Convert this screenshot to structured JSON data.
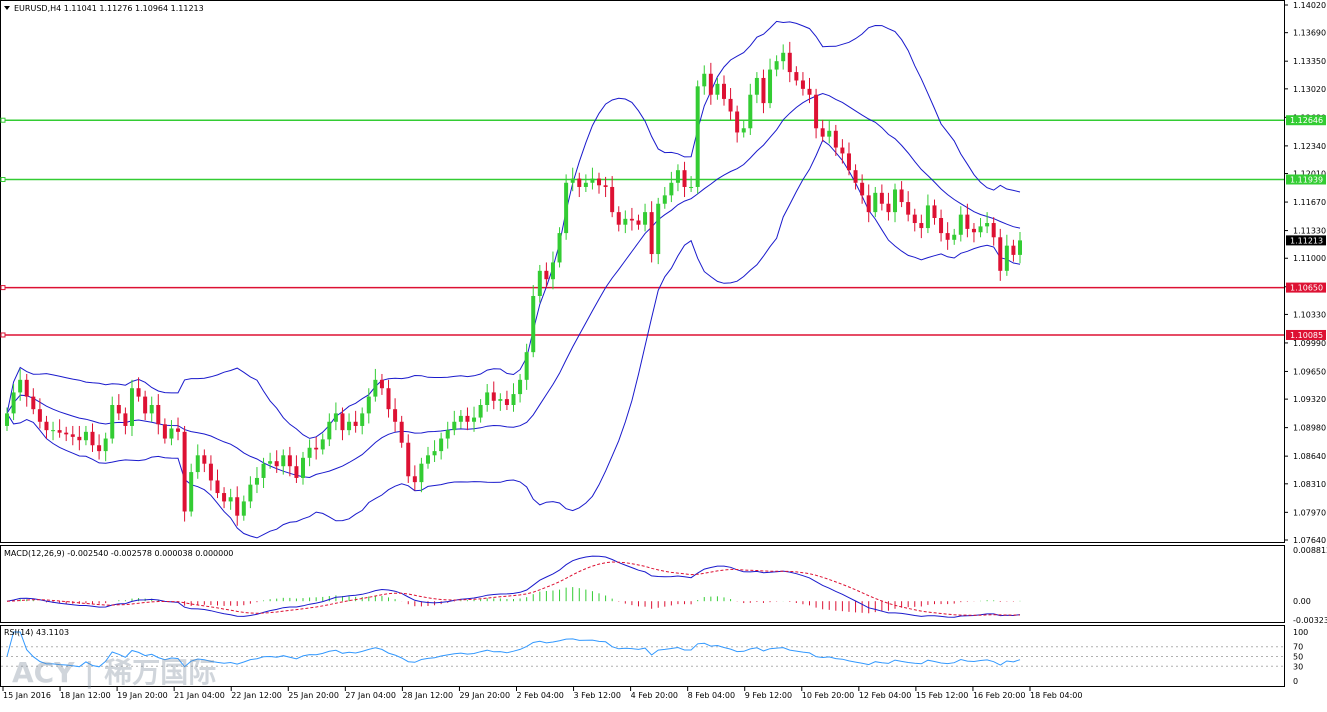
{
  "chart_data": {
    "type": "candlestick",
    "symbol_header": "EURUSD,H4  1.11041 1.11276 1.10964 1.11213",
    "current_price": "1.11213",
    "colors": {
      "bull": "#33cc33",
      "bear": "#dd1133",
      "bands": "#1a1acc",
      "hline_green": "#33cc33",
      "hline_red": "#dd1133",
      "macd_line": "#1a1acc",
      "macd_signal": "#dd1133",
      "macd_hist_pos": "#33cc33",
      "macd_hist_neg": "#dd1133",
      "rsi_line": "#3399ff",
      "grid": "#b0b0b0"
    },
    "price_axis": {
      "ticks": [
        "1.14020",
        "1.13690",
        "1.13350",
        "1.13020",
        "1.12680",
        "1.12340",
        "1.12010",
        "1.11670",
        "1.11330",
        "1.11000",
        "1.10660",
        "1.10330",
        "1.09990",
        "1.09650",
        "1.09320",
        "1.08980",
        "1.08640",
        "1.08310",
        "1.07970",
        "1.07640"
      ]
    },
    "horizontal_levels": [
      {
        "label": "1.12646",
        "value": 1.12646,
        "color": "green"
      },
      {
        "label": "1.11939",
        "value": 1.11939,
        "color": "green"
      },
      {
        "label": "1.10650",
        "value": 1.1065,
        "color": "red"
      },
      {
        "label": "1.10085",
        "value": 1.10085,
        "color": "red"
      }
    ],
    "time_axis": [
      "15 Jan 2016",
      "18 Jan 12:00",
      "19 Jan 20:00",
      "21 Jan 04:00",
      "22 Jan 12:00",
      "25 Jan 20:00",
      "27 Jan 04:00",
      "28 Jan 12:00",
      "29 Jan 20:00",
      "2 Feb 04:00",
      "3 Feb 12:00",
      "4 Feb 20:00",
      "8 Feb 04:00",
      "9 Feb 12:00",
      "10 Feb 20:00",
      "12 Feb 04:00",
      "15 Feb 12:00",
      "16 Feb 20:00",
      "18 Feb 04:00"
    ],
    "close_series": [
      1.0915,
      1.094,
      1.0955,
      1.0935,
      1.092,
      1.0905,
      1.0895,
      1.0895,
      1.0892,
      1.089,
      1.0887,
      1.0883,
      1.0893,
      1.0877,
      1.087,
      1.0885,
      1.0925,
      1.0915,
      1.09,
      1.0945,
      1.0935,
      1.0915,
      1.0925,
      1.0902,
      1.0885,
      1.0897,
      1.0893,
      1.0798,
      1.0845,
      1.0865,
      1.0855,
      1.0835,
      1.082,
      1.081,
      1.0815,
      1.0793,
      1.081,
      1.083,
      1.0838,
      1.0855,
      1.0858,
      1.0852,
      1.0865,
      1.0852,
      1.0838,
      1.0862,
      1.0874,
      1.0872,
      1.0884,
      1.0905,
      1.0915,
      1.0895,
      1.0905,
      1.09,
      1.0915,
      1.0935,
      1.0955,
      1.0945,
      1.092,
      1.0905,
      1.088,
      1.084,
      1.0833,
      1.0855,
      1.0865,
      1.087,
      1.0885,
      1.0895,
      1.0905,
      1.0912,
      1.0905,
      1.091,
      1.0925,
      1.094,
      1.093,
      1.0932,
      1.0925,
      1.0938,
      1.0955,
      1.0988,
      1.1055,
      1.1085,
      1.1075,
      1.1095,
      1.113,
      1.119,
      1.1195,
      1.1185,
      1.119,
      1.1195,
      1.1187,
      1.1185,
      1.1155,
      1.114,
      1.1147,
      1.1145,
      1.114,
      1.1155,
      1.1105,
      1.1165,
      1.1175,
      1.119,
      1.1205,
      1.1185,
      1.1185,
      1.1305,
      1.132,
      1.1295,
      1.1308,
      1.129,
      1.1275,
      1.125,
      1.1255,
      1.1295,
      1.1315,
      1.1285,
      1.1325,
      1.1335,
      1.1345,
      1.1322,
      1.1312,
      1.1302,
      1.1295,
      1.1255,
      1.1245,
      1.1252,
      1.1232,
      1.1225,
      1.1205,
      1.119,
      1.1175,
      1.1155,
      1.1178,
      1.1165,
      1.1155,
      1.1182,
      1.1167,
      1.1152,
      1.1142,
      1.1136,
      1.1163,
      1.1148,
      1.113,
      1.1122,
      1.1128,
      1.1152,
      1.1135,
      1.1131,
      1.1138,
      1.1142,
      1.1125,
      1.1085,
      1.1115,
      1.1104,
      1.11213
    ],
    "macd": {
      "label": "MACD(12,26,9) -0.002540 -0.002578 0.000038 0.000000",
      "ticks": [
        "0.008812",
        "0.00",
        "-0.003237"
      ]
    },
    "rsi": {
      "label": "RSI(14) 43.1103",
      "ticks": [
        "100",
        "70",
        "50",
        "30",
        "0"
      ],
      "levels": [
        70,
        50,
        30
      ]
    },
    "watermark": "ACY | 稀万国际"
  }
}
